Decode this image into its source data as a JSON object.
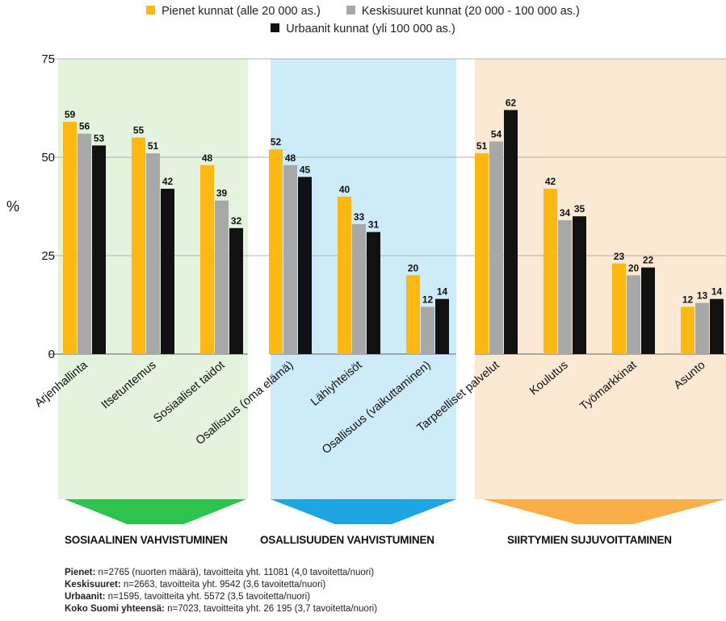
{
  "legend": [
    {
      "label": "Pienet kunnat (alle 20 000 as.)",
      "color": "#FDB813"
    },
    {
      "label": "Keskisuuret kunnat (20 000 - 100 000 as.)",
      "color": "#A8A8A8"
    },
    {
      "label": "Urbaanit kunnat (yli 100 000 as.)",
      "color": "#111111"
    }
  ],
  "groups": [
    {
      "label": "SOSIAALINEN VAHVISTUMINEN",
      "band_color": "#E3F3DD",
      "arrow_color": "#2EC24F"
    },
    {
      "label": "OSALLISUUDEN VAHVISTUMINEN",
      "band_color": "#CDEBF8",
      "arrow_color": "#1EA6E4"
    },
    {
      "label": "SIIRTYMIEN SUJUVOITTAMINEN",
      "band_color": "#FCE9D3",
      "arrow_color": "#F9AE47"
    }
  ],
  "notes": [
    {
      "bold": "Pienet:",
      "text": " n=2765 (nuorten määrä), tavoitteita yht. 11081 (4,0 tavoitetta/nuori)"
    },
    {
      "bold": "Keskisuuret:",
      "text": " n=2663, tavoitteita yht. 9542 (3,6 tavoitetta/nuori)"
    },
    {
      "bold": "Urbaanit:",
      "text": " n=1595, tavoitteita yht. 5572 (3,5 tavoitetta/nuori)"
    },
    {
      "bold": "Koko Suomi yhteensä:",
      "text": " n=7023, tavoitteita yht. 26 195 (3,7 tavoitetta/nuori)"
    }
  ],
  "chart_data": {
    "type": "bar",
    "ylabel": "%",
    "ylim": [
      0,
      75
    ],
    "yticks": [
      0,
      25,
      50,
      75
    ],
    "grid": true,
    "legend_position": "top",
    "categories": [
      "Arjenhallinta",
      "Itsetuntemus",
      "Sosiaaliset taidot",
      "Osallisuus (oma elämä)",
      "Lähiyhteisöt",
      "Osallisuus (vaikuttaminen)",
      "Tarpeelliset palvelut",
      "Koulutus",
      "Työmarkkinat",
      "Asunto"
    ],
    "category_groups": [
      0,
      0,
      0,
      1,
      1,
      1,
      2,
      2,
      2,
      2
    ],
    "series": [
      {
        "name": "Pienet kunnat (alle 20 000 as.)",
        "color": "#FDB813",
        "values": [
          59,
          55,
          48,
          52,
          40,
          20,
          51,
          42,
          23,
          12
        ]
      },
      {
        "name": "Keskisuuret kunnat (20 000 - 100 000 as.)",
        "color": "#A8A8A8",
        "values": [
          56,
          51,
          39,
          48,
          33,
          12,
          54,
          34,
          20,
          13
        ]
      },
      {
        "name": "Urbaanit kunnat (yli 100 000 as.)",
        "color": "#111111",
        "values": [
          53,
          42,
          32,
          45,
          31,
          14,
          62,
          35,
          22,
          14
        ]
      }
    ]
  }
}
